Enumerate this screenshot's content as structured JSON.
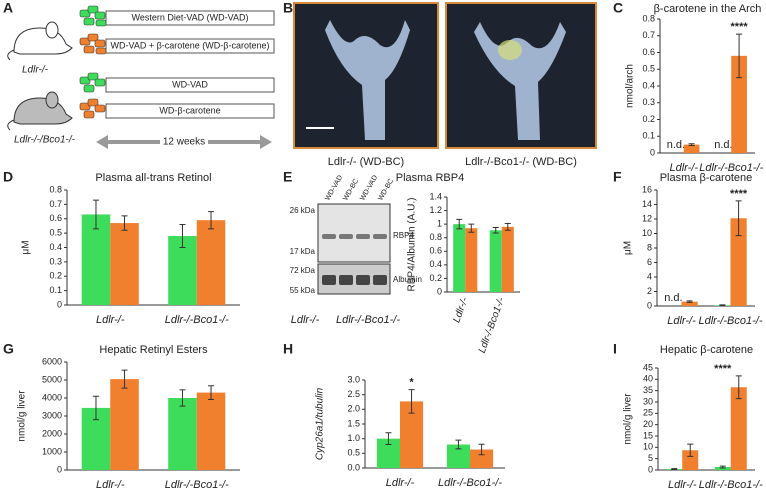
{
  "diagram": {
    "label": "A",
    "rows": [
      "Western Diet-VAD (WD-VAD)",
      "WD-VAD + β-carotene (WD-β-carotene)",
      "WD-VAD",
      "WD-β-carotene"
    ],
    "groups": [
      "Ldlr-/-",
      "Ldlr-/-/Bco1-/-"
    ],
    "duration": "12 weeks"
  },
  "images": {
    "label": "B",
    "captions": [
      "Ldlr-/- (WD-BC)",
      "Ldlr-/-Bco1-/- (WD-BC)"
    ]
  },
  "blot": {
    "label": "E",
    "title": "Plasma RBP4",
    "lanes": [
      "WD-VAD",
      "WD-BC",
      "WD-VAD",
      "WD-BC"
    ],
    "markers": [
      "26 kDa",
      "17 kDa",
      "72 kDa",
      "55 kDa"
    ],
    "bands": [
      "RBP4",
      "Albumin"
    ],
    "groups": [
      "Ldlr-/-",
      "Ldlr-/-Bco1-/-"
    ]
  },
  "chart_data": [
    {
      "type": "bar",
      "panel": "C",
      "title": "β-carotene in the Arch",
      "ylabel": "nmol/arch",
      "categories": [
        "Ldlr-/-",
        "Ldlr-/-Bco1-/-"
      ],
      "series": [
        {
          "color": "#3ddc5a",
          "values": [
            null,
            null
          ],
          "errors": [
            null,
            null
          ],
          "notes": [
            "n.d.",
            "n.d."
          ]
        },
        {
          "color": "#f07f2e",
          "values": [
            0.05,
            0.58
          ],
          "errors": [
            0.005,
            0.13
          ],
          "notes": [
            null,
            "****"
          ]
        }
      ],
      "ylim": [
        0,
        0.8
      ],
      "yticks": [
        0,
        0.1,
        0.2,
        0.3,
        0.4,
        0.5,
        0.6,
        0.7,
        0.8
      ]
    },
    {
      "type": "bar",
      "panel": "D",
      "title": "Plasma all-trans Retinol",
      "ylabel": "μM",
      "categories": [
        "Ldlr-/-",
        "Ldlr-/-Bco1-/-"
      ],
      "series": [
        {
          "color": "#3ddc5a",
          "values": [
            0.63,
            0.48
          ],
          "errors": [
            0.1,
            0.08
          ]
        },
        {
          "color": "#f07f2e",
          "values": [
            0.57,
            0.59
          ],
          "errors": [
            0.05,
            0.06
          ]
        }
      ],
      "ylim": [
        0,
        0.8
      ],
      "yticks": [
        0,
        0.1,
        0.2,
        0.3,
        0.4,
        0.5,
        0.6,
        0.7,
        0.8
      ]
    },
    {
      "type": "bar",
      "ylabel": "RBP4/Albumin (A.U.)",
      "categories": [
        "Ldlr-/-",
        "Ldlr-/-Bco1-/-"
      ],
      "series": [
        {
          "color": "#3ddc5a",
          "values": [
            1.0,
            0.91
          ],
          "errors": [
            0.07,
            0.04
          ]
        },
        {
          "color": "#f07f2e",
          "values": [
            0.94,
            0.96
          ],
          "errors": [
            0.06,
            0.05
          ]
        }
      ],
      "ylim": [
        0,
        1.4
      ],
      "yticks": [
        0,
        0.2,
        0.4,
        0.6,
        0.8,
        1,
        1.2,
        1.4
      ]
    },
    {
      "type": "bar",
      "panel": "F",
      "title": "Plasma β-carotene",
      "ylabel": "μM",
      "categories": [
        "Ldlr-/-",
        "Ldlr-/-Bco1-/-"
      ],
      "series": [
        {
          "color": "#3ddc5a",
          "values": [
            null,
            0.1
          ],
          "errors": [
            null,
            0.05
          ],
          "notes": [
            "n.d.",
            null
          ]
        },
        {
          "color": "#f07f2e",
          "values": [
            0.6,
            12.1
          ],
          "errors": [
            0.1,
            2.4
          ],
          "notes": [
            null,
            "****"
          ]
        }
      ],
      "ylim": [
        0,
        16
      ],
      "yticks": [
        0,
        2,
        4,
        6,
        8,
        10,
        12,
        14,
        16
      ]
    },
    {
      "type": "bar",
      "panel": "G",
      "title": "Hepatic Retinyl Esters",
      "ylabel": "nmol/g liver",
      "categories": [
        "Ldlr-/-",
        "Ldlr-/-Bco1-/-"
      ],
      "series": [
        {
          "color": "#3ddc5a",
          "values": [
            3450,
            4000
          ],
          "errors": [
            650,
            450
          ]
        },
        {
          "color": "#f07f2e",
          "values": [
            5050,
            4300
          ],
          "errors": [
            500,
            380
          ]
        }
      ],
      "ylim": [
        0,
        6000
      ],
      "yticks": [
        0,
        1000,
        2000,
        3000,
        4000,
        5000,
        6000
      ]
    },
    {
      "type": "bar",
      "panel": "H",
      "ylabel": "Cyp26a1/tubulin",
      "categories": [
        "Ldlr-/-",
        "Ldlr-/-Bco1-/-"
      ],
      "series": [
        {
          "color": "#3ddc5a",
          "values": [
            1.0,
            0.8
          ],
          "errors": [
            0.2,
            0.15
          ]
        },
        {
          "color": "#f07f2e",
          "values": [
            2.27,
            0.63
          ],
          "errors": [
            0.4,
            0.18
          ],
          "notes": [
            "*",
            null
          ]
        }
      ],
      "ylim": [
        0,
        3
      ],
      "yticks": [
        {
          "value": 0,
          "label": "0.0"
        },
        0.5,
        {
          "value": 1,
          "label": "1.0"
        },
        1.5,
        {
          "value": 2,
          "label": "2.0"
        },
        2.5,
        {
          "value": 3,
          "label": "3.0"
        }
      ]
    },
    {
      "type": "bar",
      "panel": "I",
      "title": "Hepatic β-carotene",
      "ylabel": "nmol/g liver",
      "categories": [
        "Ldlr-/-",
        "Ldlr-/-Bco1-/-"
      ],
      "series": [
        {
          "color": "#3ddc5a",
          "values": [
            0.4,
            1.3
          ],
          "errors": [
            0.2,
            0.4
          ]
        },
        {
          "color": "#f07f2e",
          "values": [
            8.7,
            36.5
          ],
          "errors": [
            2.7,
            5
          ]
        },
        {
          "color": "#f07f2e",
          "values": [
            null,
            null
          ],
          "errors": [
            null,
            null
          ],
          "notes": [
            null,
            "****"
          ]
        }
      ],
      "ylim": [
        0,
        45
      ],
      "yticks": [
        0,
        5,
        10,
        15,
        20,
        25,
        30,
        35,
        40,
        45
      ]
    }
  ]
}
